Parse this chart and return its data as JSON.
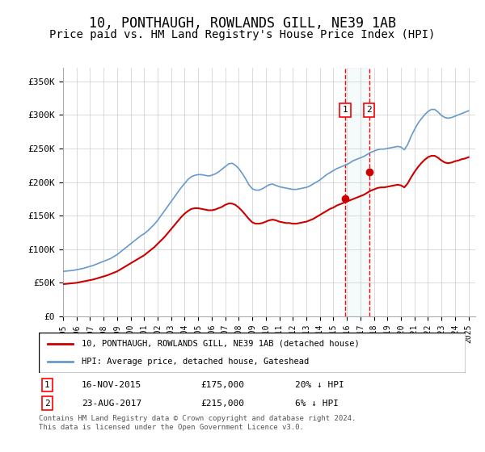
{
  "title": "10, PONTHAUGH, ROWLANDS GILL, NE39 1AB",
  "subtitle": "Price paid vs. HM Land Registry's House Price Index (HPI)",
  "title_fontsize": 12,
  "subtitle_fontsize": 10,
  "ylabel_ticks": [
    "£0",
    "£50K",
    "£100K",
    "£150K",
    "£200K",
    "£250K",
    "£300K",
    "£350K"
  ],
  "ytick_values": [
    0,
    50000,
    100000,
    150000,
    200000,
    250000,
    300000,
    350000
  ],
  "ylim": [
    0,
    370000
  ],
  "xlim_start": 1995.0,
  "xlim_end": 2025.5,
  "hpi_color": "#6699cc",
  "price_color": "#cc0000",
  "background_color": "#ffffff",
  "grid_color": "#cccccc",
  "sale1_x": 2015.88,
  "sale1_y": 175000,
  "sale2_x": 2017.65,
  "sale2_y": 215000,
  "sale1_label": "1",
  "sale2_label": "2",
  "legend_line1": "10, PONTHAUGH, ROWLANDS GILL, NE39 1AB (detached house)",
  "legend_line2": "HPI: Average price, detached house, Gateshead",
  "annotation1_num": "1",
  "annotation1_date": "16-NOV-2015",
  "annotation1_price": "£175,000",
  "annotation1_hpi": "20% ↓ HPI",
  "annotation2_num": "2",
  "annotation2_date": "23-AUG-2017",
  "annotation2_price": "£215,000",
  "annotation2_hpi": "6% ↓ HPI",
  "footer": "Contains HM Land Registry data © Crown copyright and database right 2024.\nThis data is licensed under the Open Government Licence v3.0.",
  "hpi_data_x": [
    1995.0,
    1995.25,
    1995.5,
    1995.75,
    1996.0,
    1996.25,
    1996.5,
    1996.75,
    1997.0,
    1997.25,
    1997.5,
    1997.75,
    1998.0,
    1998.25,
    1998.5,
    1998.75,
    1999.0,
    1999.25,
    1999.5,
    1999.75,
    2000.0,
    2000.25,
    2000.5,
    2000.75,
    2001.0,
    2001.25,
    2001.5,
    2001.75,
    2002.0,
    2002.25,
    2002.5,
    2002.75,
    2003.0,
    2003.25,
    2003.5,
    2003.75,
    2004.0,
    2004.25,
    2004.5,
    2004.75,
    2005.0,
    2005.25,
    2005.5,
    2005.75,
    2006.0,
    2006.25,
    2006.5,
    2006.75,
    2007.0,
    2007.25,
    2007.5,
    2007.75,
    2008.0,
    2008.25,
    2008.5,
    2008.75,
    2009.0,
    2009.25,
    2009.5,
    2009.75,
    2010.0,
    2010.25,
    2010.5,
    2010.75,
    2011.0,
    2011.25,
    2011.5,
    2011.75,
    2012.0,
    2012.25,
    2012.5,
    2012.75,
    2013.0,
    2013.25,
    2013.5,
    2013.75,
    2014.0,
    2014.25,
    2014.5,
    2014.75,
    2015.0,
    2015.25,
    2015.5,
    2015.75,
    2016.0,
    2016.25,
    2016.5,
    2016.75,
    2017.0,
    2017.25,
    2017.5,
    2017.75,
    2018.0,
    2018.25,
    2018.5,
    2018.75,
    2019.0,
    2019.25,
    2019.5,
    2019.75,
    2020.0,
    2020.25,
    2020.5,
    2020.75,
    2021.0,
    2021.25,
    2021.5,
    2021.75,
    2022.0,
    2022.25,
    2022.5,
    2022.75,
    2023.0,
    2023.25,
    2023.5,
    2023.75,
    2024.0,
    2024.25,
    2024.5,
    2024.75,
    2025.0
  ],
  "hpi_data_y": [
    67000,
    67500,
    68000,
    68500,
    69500,
    70500,
    71500,
    73000,
    74500,
    76000,
    78000,
    80000,
    82000,
    84000,
    86000,
    89000,
    92000,
    96000,
    100000,
    104000,
    108000,
    112000,
    116000,
    120000,
    123000,
    127000,
    132000,
    137000,
    143000,
    150000,
    157000,
    164000,
    171000,
    178000,
    185000,
    192000,
    198000,
    204000,
    208000,
    210000,
    211000,
    211000,
    210000,
    209000,
    210000,
    212000,
    215000,
    219000,
    223000,
    227000,
    228000,
    225000,
    220000,
    213000,
    205000,
    196000,
    190000,
    188000,
    188000,
    190000,
    193000,
    196000,
    197000,
    195000,
    193000,
    192000,
    191000,
    190000,
    189000,
    189000,
    190000,
    191000,
    192000,
    194000,
    197000,
    200000,
    203000,
    207000,
    211000,
    214000,
    217000,
    220000,
    222000,
    224000,
    226000,
    229000,
    232000,
    234000,
    236000,
    238000,
    241000,
    244000,
    246000,
    248000,
    249000,
    249000,
    250000,
    251000,
    252000,
    253000,
    252000,
    248000,
    256000,
    268000,
    278000,
    287000,
    294000,
    300000,
    305000,
    308000,
    308000,
    304000,
    299000,
    296000,
    295000,
    296000,
    298000,
    300000,
    302000,
    304000,
    306000
  ],
  "price_data_x": [
    1995.0,
    1995.25,
    1995.5,
    1995.75,
    1996.0,
    1996.25,
    1996.5,
    1996.75,
    1997.0,
    1997.25,
    1997.5,
    1997.75,
    1998.0,
    1998.25,
    1998.5,
    1998.75,
    1999.0,
    1999.25,
    1999.5,
    1999.75,
    2000.0,
    2000.25,
    2000.5,
    2000.75,
    2001.0,
    2001.25,
    2001.5,
    2001.75,
    2002.0,
    2002.25,
    2002.5,
    2002.75,
    2003.0,
    2003.25,
    2003.5,
    2003.75,
    2004.0,
    2004.25,
    2004.5,
    2004.75,
    2005.0,
    2005.25,
    2005.5,
    2005.75,
    2006.0,
    2006.25,
    2006.5,
    2006.75,
    2007.0,
    2007.25,
    2007.5,
    2007.75,
    2008.0,
    2008.25,
    2008.5,
    2008.75,
    2009.0,
    2009.25,
    2009.5,
    2009.75,
    2010.0,
    2010.25,
    2010.5,
    2010.75,
    2011.0,
    2011.25,
    2011.5,
    2011.75,
    2012.0,
    2012.25,
    2012.5,
    2012.75,
    2013.0,
    2013.25,
    2013.5,
    2013.75,
    2014.0,
    2014.25,
    2014.5,
    2014.75,
    2015.0,
    2015.25,
    2015.5,
    2015.75,
    2016.0,
    2016.25,
    2016.5,
    2016.75,
    2017.0,
    2017.25,
    2017.5,
    2017.75,
    2018.0,
    2018.25,
    2018.5,
    2018.75,
    2019.0,
    2019.25,
    2019.5,
    2019.75,
    2020.0,
    2020.25,
    2020.5,
    2020.75,
    2021.0,
    2021.25,
    2021.5,
    2021.75,
    2022.0,
    2022.25,
    2022.5,
    2022.75,
    2023.0,
    2023.25,
    2023.5,
    2023.75,
    2024.0,
    2024.25,
    2024.5,
    2024.75,
    2025.0
  ],
  "price_data_y": [
    48000,
    48500,
    49000,
    49500,
    50000,
    51000,
    52000,
    53000,
    54000,
    55000,
    56500,
    58000,
    59500,
    61000,
    63000,
    65000,
    67000,
    70000,
    73000,
    76000,
    79000,
    82000,
    85000,
    88000,
    91000,
    95000,
    99000,
    103000,
    108000,
    113000,
    118000,
    124000,
    130000,
    136000,
    142000,
    148000,
    153000,
    157000,
    160000,
    161000,
    161000,
    160000,
    159000,
    158000,
    158000,
    159000,
    161000,
    163000,
    166000,
    168000,
    168000,
    166000,
    162000,
    157000,
    151000,
    145000,
    140000,
    138000,
    138000,
    139000,
    141000,
    143000,
    144000,
    143000,
    141000,
    140000,
    139000,
    139000,
    138000,
    138000,
    139000,
    140000,
    141000,
    143000,
    145000,
    148000,
    151000,
    154000,
    157000,
    160000,
    162000,
    165000,
    167000,
    169000,
    171000,
    173000,
    175000,
    177000,
    179000,
    181000,
    184000,
    187000,
    189000,
    191000,
    192000,
    192000,
    193000,
    194000,
    195000,
    196000,
    195000,
    192000,
    198000,
    207000,
    215000,
    222000,
    228000,
    233000,
    237000,
    239000,
    239000,
    236000,
    232000,
    229000,
    228000,
    229000,
    231000,
    232000,
    234000,
    235000,
    237000
  ]
}
